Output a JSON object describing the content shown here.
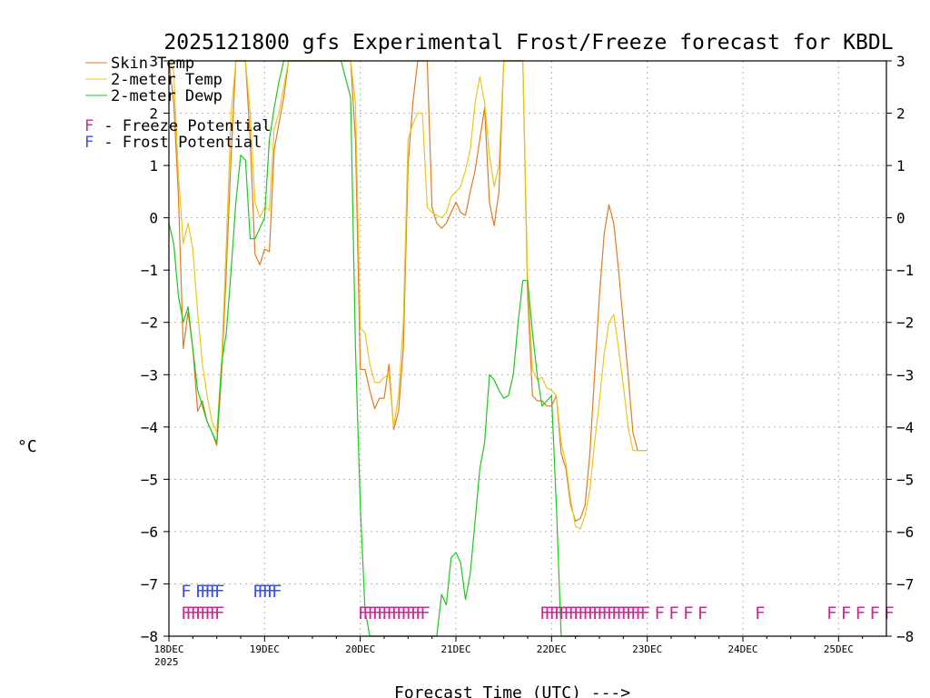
{
  "chart_data": {
    "type": "line",
    "title": "2025121800 gfs Experimental Frost/Freeze forecast for KBDL",
    "ylabel": "°C",
    "xlabel": "Forecast Time (UTC) --->",
    "ylim": [
      -8,
      3
    ],
    "xlim": [
      0,
      7.5
    ],
    "yticks": [
      3,
      2,
      1,
      0,
      -1,
      -2,
      -3,
      -4,
      -5,
      -6,
      -7,
      -8
    ],
    "ytick_labels": [
      "3",
      "2",
      "1",
      "0",
      "−1",
      "−2",
      "−3",
      "−4",
      "−5",
      "−6",
      "−7",
      "−8"
    ],
    "xticks": [
      0,
      1,
      2,
      3,
      4,
      5,
      6,
      7
    ],
    "xtick_labels": [
      "18DEC",
      "19DEC",
      "20DEC",
      "21DEC",
      "22DEC",
      "23DEC",
      "24DEC",
      "25DEC"
    ],
    "xtick_sub": "2025",
    "grid": true,
    "legend": {
      "placement": "top-left",
      "entries": [
        {
          "label": "Skin Temp",
          "color": "#e07a20"
        },
        {
          "label": "2-meter Temp",
          "color": "#e6c81e"
        },
        {
          "label": "2-meter Dewp",
          "color": "#1ec81e"
        }
      ],
      "markers": [
        {
          "symbol": "F",
          "label": " - Freeze Potential",
          "color": "#d02890"
        },
        {
          "symbol": "F",
          "label": " - Frost Potential",
          "color": "#3c50dc"
        }
      ]
    },
    "series": [
      {
        "name": "Skin Temp",
        "color": "#e07a20",
        "x": [
          0,
          0.05,
          0.1,
          0.15,
          0.2,
          0.25,
          0.3,
          0.35,
          0.4,
          0.45,
          0.5,
          0.55,
          0.6,
          0.65,
          0.7,
          0.75,
          0.8,
          0.85,
          0.9,
          0.95,
          1.0,
          1.05,
          1.1,
          1.15,
          1.2,
          1.25,
          1.3,
          1.4,
          1.5,
          1.6,
          1.7,
          1.8,
          1.9,
          1.95,
          2.0,
          2.05,
          2.1,
          2.15,
          2.2,
          2.25,
          2.3,
          2.35,
          2.4,
          2.45,
          2.5,
          2.55,
          2.6,
          2.65,
          2.7,
          2.75,
          2.8,
          2.85,
          2.9,
          2.95,
          3.0,
          3.05,
          3.1,
          3.15,
          3.2,
          3.25,
          3.3,
          3.35,
          3.4,
          3.45,
          3.5,
          3.55,
          3.6,
          3.65,
          3.7,
          3.75,
          3.8,
          3.85,
          3.9,
          3.95,
          4.0,
          4.05,
          4.1,
          4.15,
          4.2,
          4.25,
          4.3,
          4.35,
          4.4,
          4.45,
          4.5,
          4.55,
          4.6,
          4.65,
          4.7,
          4.75,
          4.8,
          4.85,
          4.9,
          4.95,
          5.0
        ],
        "y": [
          3,
          2.2,
          0.4,
          -2.5,
          -1.8,
          -2.5,
          -3.7,
          -3.5,
          -3.9,
          -4.1,
          -4.35,
          -3.0,
          -1.0,
          1.2,
          3,
          3,
          3,
          1.5,
          -0.7,
          -0.9,
          -0.6,
          -0.65,
          1.3,
          1.8,
          2.3,
          3,
          3,
          3,
          3,
          3,
          3,
          3,
          3,
          1.5,
          -2.9,
          -2.9,
          -3.3,
          -3.65,
          -3.45,
          -3.45,
          -2.8,
          -4.05,
          -3.7,
          -2.5,
          1.0,
          2.2,
          3,
          3,
          3,
          0.2,
          -0.1,
          -0.2,
          -0.1,
          0.1,
          0.3,
          0.1,
          0.05,
          0.5,
          0.9,
          1.5,
          2.1,
          0.3,
          -0.15,
          0.5,
          3,
          3,
          3,
          3,
          3,
          -1.5,
          -3.4,
          -3.5,
          -3.5,
          -3.6,
          -3.6,
          -3.4,
          -4.5,
          -4.8,
          -5.5,
          -5.8,
          -5.75,
          -5.5,
          -4.5,
          -3.0,
          -1.5,
          -0.3,
          0.25,
          -0.1,
          -1.0,
          -2.0,
          -3.0,
          -4.1,
          -4.45,
          -4.45,
          -4.45
        ]
      },
      {
        "name": "2-meter Temp",
        "color": "#e6c81e",
        "x": [
          0,
          0.05,
          0.1,
          0.15,
          0.2,
          0.25,
          0.3,
          0.35,
          0.4,
          0.45,
          0.5,
          0.55,
          0.6,
          0.65,
          0.7,
          0.75,
          0.8,
          0.85,
          0.9,
          0.95,
          1.0,
          1.05,
          1.1,
          1.15,
          1.2,
          1.25,
          1.3,
          1.4,
          1.5,
          1.6,
          1.7,
          1.8,
          1.9,
          1.95,
          2.0,
          2.05,
          2.1,
          2.15,
          2.2,
          2.25,
          2.3,
          2.35,
          2.4,
          2.45,
          2.5,
          2.55,
          2.6,
          2.65,
          2.7,
          2.75,
          2.8,
          2.85,
          2.9,
          2.95,
          3.0,
          3.05,
          3.1,
          3.15,
          3.2,
          3.25,
          3.3,
          3.35,
          3.4,
          3.45,
          3.5,
          3.55,
          3.6,
          3.65,
          3.7,
          3.75,
          3.8,
          3.85,
          3.9,
          3.95,
          4.0,
          4.05,
          4.1,
          4.15,
          4.2,
          4.25,
          4.3,
          4.35,
          4.4,
          4.45,
          4.5,
          4.55,
          4.6,
          4.65,
          4.7,
          4.75,
          4.8,
          4.85,
          4.9,
          4.95,
          5.0
        ],
        "y": [
          3,
          2.8,
          0.8,
          -0.5,
          -0.1,
          -0.6,
          -1.8,
          -2.8,
          -3.4,
          -3.9,
          -4.1,
          -2.8,
          -0.5,
          2.0,
          3,
          3,
          3,
          2.0,
          0.3,
          0.0,
          0.2,
          0.15,
          1.7,
          2.0,
          2.5,
          3,
          3,
          3,
          3,
          3,
          3,
          3,
          3,
          2.2,
          -2.1,
          -2.2,
          -2.8,
          -3.15,
          -3.15,
          -3.05,
          -3.0,
          -4.0,
          -3.4,
          -2.0,
          1.5,
          1.8,
          2.0,
          2.0,
          0.2,
          0.1,
          0.05,
          0.0,
          0.1,
          0.4,
          0.5,
          0.6,
          0.9,
          1.3,
          2.2,
          2.7,
          2.2,
          1.2,
          0.6,
          1.0,
          3,
          3,
          3,
          3,
          3,
          -1.2,
          -2.9,
          -3.1,
          -3.05,
          -3.25,
          -3.3,
          -3.4,
          -4.3,
          -4.7,
          -5.4,
          -5.9,
          -5.95,
          -5.7,
          -5.2,
          -4.3,
          -3.5,
          -2.6,
          -2.0,
          -1.85,
          -2.5,
          -3.2,
          -4.0,
          -4.45,
          -4.45,
          -4.45,
          -4.45
        ]
      },
      {
        "name": "2-meter Dewp",
        "color": "#1ec81e",
        "x": [
          0,
          0.05,
          0.1,
          0.15,
          0.2,
          0.25,
          0.3,
          0.35,
          0.4,
          0.45,
          0.5,
          0.55,
          0.6,
          0.65,
          0.7,
          0.75,
          0.8,
          0.85,
          0.9,
          0.95,
          1.0,
          1.05,
          1.1,
          1.15,
          1.2,
          1.25,
          1.3,
          1.4,
          1.5,
          1.6,
          1.7,
          1.8,
          1.9,
          1.95,
          2.0,
          2.05,
          2.1,
          2.15,
          2.2,
          2.25,
          2.3,
          2.35,
          2.4,
          2.45,
          2.5,
          2.55,
          2.6,
          2.65,
          2.7,
          2.75,
          2.8,
          2.85,
          2.9,
          2.95,
          3.0,
          3.05,
          3.1,
          3.15,
          3.2,
          3.25,
          3.3,
          3.35,
          3.4,
          3.45,
          3.5,
          3.55,
          3.6,
          3.65,
          3.7,
          3.75,
          3.8,
          3.85,
          3.9,
          3.95,
          4.0,
          4.05,
          4.1,
          4.15,
          4.2,
          4.25,
          4.3
        ],
        "y": [
          -0.1,
          -0.5,
          -1.5,
          -2.0,
          -1.7,
          -2.5,
          -3.3,
          -3.6,
          -3.9,
          -4.1,
          -4.3,
          -2.8,
          -2.2,
          -1.0,
          0.3,
          1.2,
          1.1,
          -0.4,
          -0.4,
          -0.2,
          0.0,
          1.5,
          2.1,
          2.6,
          3,
          3,
          3,
          3,
          3,
          3,
          3,
          3,
          2.3,
          -2.5,
          -5.5,
          -7.5,
          -8,
          -8,
          -8,
          -8,
          -8,
          -8,
          -8,
          -8,
          -8,
          -8,
          -8,
          -8,
          -8,
          -8,
          -8,
          -7.2,
          -7.4,
          -6.5,
          -6.4,
          -6.6,
          -7.3,
          -6.8,
          -5.8,
          -4.8,
          -4.3,
          -3.0,
          -3.1,
          -3.3,
          -3.45,
          -3.4,
          -3.0,
          -2.0,
          -1.2,
          -1.2,
          -2.2,
          -3.0,
          -3.6,
          -3.5,
          -3.4,
          -5.5,
          -8,
          -8,
          -8,
          -8,
          -8
        ]
      }
    ],
    "freeze_potential_x": [
      0.15,
      0.2,
      0.25,
      0.3,
      0.35,
      0.4,
      0.45,
      0.5,
      2.0,
      2.05,
      2.1,
      2.15,
      2.2,
      2.25,
      2.3,
      2.35,
      2.4,
      2.45,
      2.5,
      2.55,
      2.6,
      2.65,
      3.9,
      3.95,
      4.0,
      4.05,
      4.1,
      4.15,
      4.2,
      4.25,
      4.3,
      4.35,
      4.4,
      4.45,
      4.5,
      4.55,
      4.6,
      4.65,
      4.7,
      4.75,
      4.8,
      4.85,
      4.9,
      4.95,
      5.1,
      5.25,
      5.4,
      5.55,
      6.15,
      6.9,
      7.05,
      7.2,
      7.35,
      7.5
    ],
    "frost_potential_x": [
      0.15,
      0.3,
      0.35,
      0.4,
      0.45,
      0.5,
      0.9,
      0.95,
      1.0,
      1.05,
      1.1
    ]
  }
}
